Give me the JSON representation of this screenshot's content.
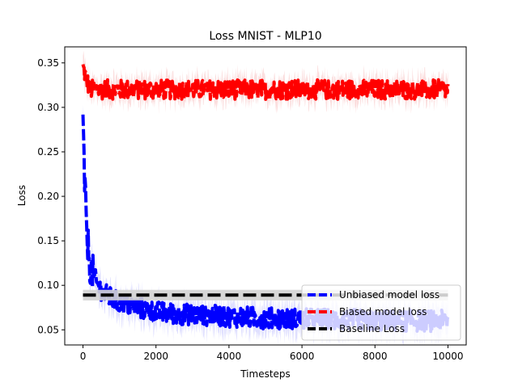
{
  "chart_data": {
    "type": "line",
    "title": "Loss MNIST - MLP10",
    "xlabel": "Timesteps",
    "ylabel": "Loss",
    "xlim": [
      -500,
      10500
    ],
    "ylim": [
      0.033,
      0.368
    ],
    "xticks": [
      0,
      2000,
      4000,
      6000,
      8000,
      10000
    ],
    "yticks": [
      0.05,
      0.1,
      0.15,
      0.2,
      0.25,
      0.3,
      0.35
    ],
    "ytick_labels": [
      "0.05",
      "0.10",
      "0.15",
      "0.20",
      "0.25",
      "0.30",
      "0.35"
    ],
    "legend_position": "lower-right",
    "grid": false,
    "series": [
      {
        "name": "Unbiased model loss",
        "color": "#0000ff",
        "band_color": "#ccccff",
        "style": "dashed",
        "x": [
          0,
          20,
          40,
          60,
          80,
          100,
          150,
          200,
          300,
          400,
          500,
          600,
          800,
          1000,
          1200,
          1500,
          1800,
          2000,
          2500,
          3000,
          3500,
          4000,
          4500,
          5000,
          5500,
          6000,
          6500,
          7000,
          7500,
          8000,
          8500,
          9000,
          9500,
          10000
        ],
        "values": [
          0.28,
          0.25,
          0.22,
          0.2,
          0.18,
          0.16,
          0.14,
          0.12,
          0.11,
          0.1,
          0.095,
          0.09,
          0.085,
          0.08,
          0.078,
          0.075,
          0.072,
          0.07,
          0.068,
          0.067,
          0.066,
          0.065,
          0.064,
          0.063,
          0.063,
          0.062,
          0.062,
          0.061,
          0.061,
          0.06,
          0.06,
          0.06,
          0.06,
          0.06
        ]
      },
      {
        "name": "Biased model loss",
        "color": "#ff0000",
        "band_color": "#f8c8c8",
        "style": "dashed",
        "x": [
          0,
          100,
          200,
          500,
          1000,
          2000,
          3000,
          4000,
          5000,
          6000,
          7000,
          8000,
          9000,
          10000
        ],
        "values": [
          0.345,
          0.33,
          0.32,
          0.32,
          0.32,
          0.32,
          0.32,
          0.32,
          0.32,
          0.32,
          0.32,
          0.32,
          0.32,
          0.32
        ]
      },
      {
        "name": "Baseline Loss",
        "color": "#000000",
        "band_color": "#d3d3d3",
        "style": "dashed",
        "x": [
          0,
          10000
        ],
        "values": [
          0.089,
          0.089
        ]
      }
    ]
  }
}
